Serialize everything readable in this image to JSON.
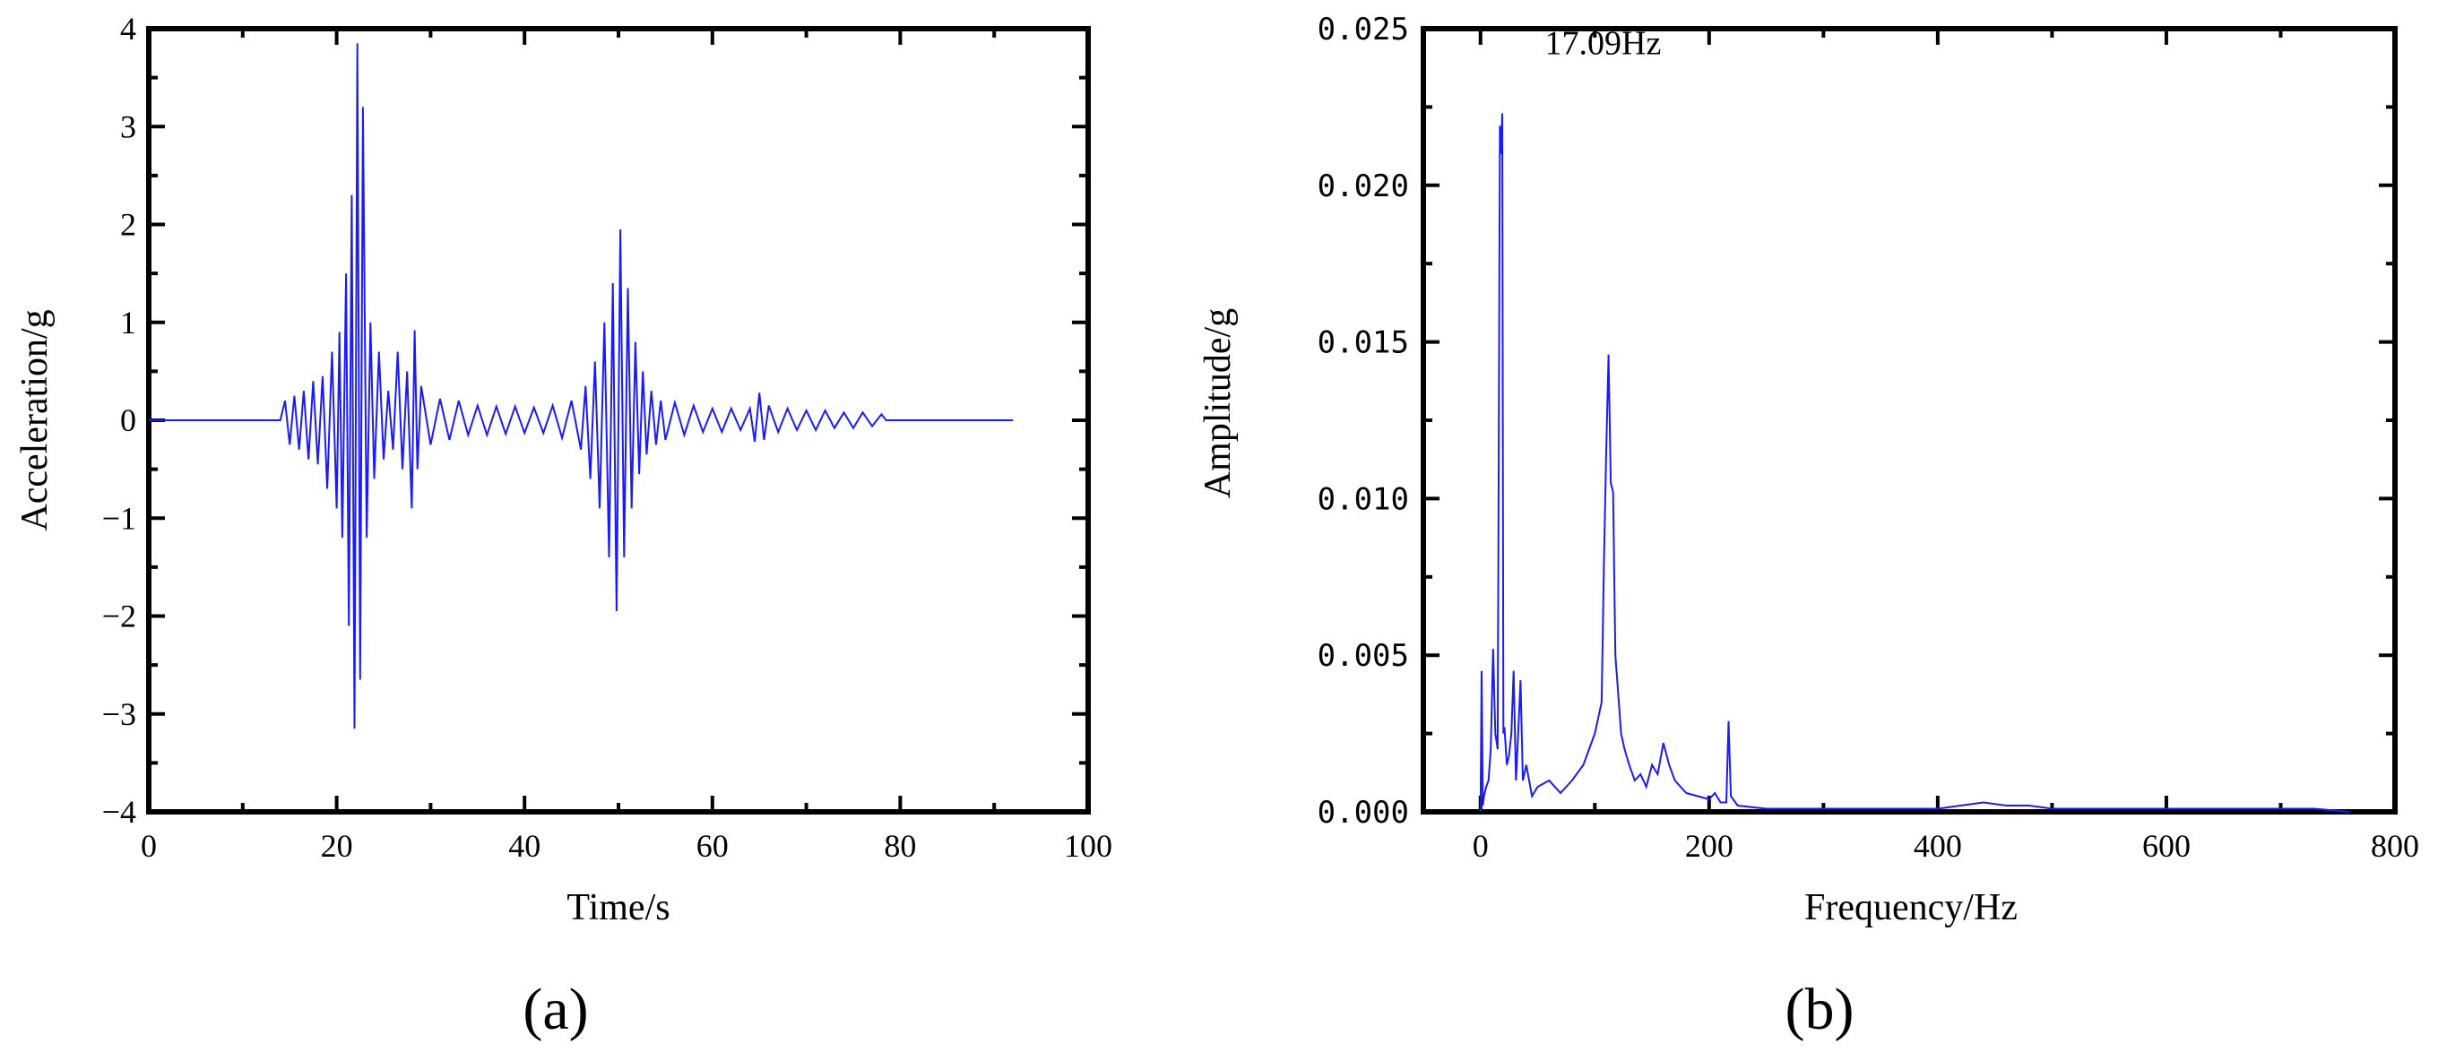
{
  "chart_data": [
    {
      "id": "a",
      "type": "line",
      "title": "",
      "panel_label": "(a)",
      "xlabel": "Time/s",
      "ylabel": "Acceleration/g",
      "xlim": [
        0,
        100
      ],
      "ylim": [
        -4,
        4
      ],
      "xticks": [
        0,
        20,
        40,
        60,
        80,
        100
      ],
      "yticks": [
        -4,
        -3,
        -2,
        -1,
        0,
        1,
        2,
        3,
        4
      ],
      "ytick_labels": [
        "−4",
        "−3",
        "−2",
        "−1",
        "0",
        "1",
        "2",
        "3",
        "4"
      ],
      "grid": false,
      "color": "#1a1aff",
      "series": [
        {
          "name": "acceleration",
          "x": [
            0,
            14,
            14.5,
            15,
            15.5,
            16,
            16.5,
            17,
            17.5,
            18,
            18.5,
            19,
            19.5,
            20,
            20.3,
            20.6,
            21,
            21.3,
            21.6,
            21.9,
            22.2,
            22.5,
            22.8,
            23.2,
            23.6,
            24,
            24.5,
            25,
            25.5,
            26,
            26.5,
            27,
            27.5,
            28,
            28.3,
            28.6,
            29,
            30,
            31,
            32,
            33,
            34,
            35,
            36,
            37,
            38,
            39,
            40,
            41,
            42,
            43,
            44,
            45,
            46,
            46.5,
            47,
            47.5,
            48,
            48.5,
            49,
            49.4,
            49.8,
            50.2,
            50.6,
            51,
            51.4,
            51.8,
            52.2,
            52.6,
            53,
            53.5,
            54,
            54.5,
            55,
            56,
            57,
            58,
            59,
            60,
            61,
            62,
            63,
            64,
            64.5,
            65,
            65.5,
            66,
            67,
            68,
            69,
            70,
            71,
            72,
            73,
            74,
            75,
            76,
            77,
            78,
            78.5,
            80,
            92
          ],
          "y": [
            0,
            0,
            0.2,
            -0.25,
            0.25,
            -0.3,
            0.3,
            -0.4,
            0.4,
            -0.45,
            0.45,
            -0.7,
            0.7,
            -0.9,
            0.9,
            -1.2,
            1.5,
            -2.1,
            2.3,
            -3.15,
            3.85,
            -2.65,
            3.2,
            -1.2,
            1.0,
            -0.6,
            0.7,
            -0.4,
            0.3,
            -0.3,
            0.7,
            -0.5,
            0.5,
            -0.9,
            0.92,
            -0.5,
            0.35,
            -0.25,
            0.22,
            -0.2,
            0.2,
            -0.15,
            0.15,
            -0.15,
            0.14,
            -0.14,
            0.14,
            -0.13,
            0.13,
            -0.13,
            0.15,
            -0.18,
            0.2,
            -0.3,
            0.35,
            -0.6,
            0.6,
            -0.9,
            1.0,
            -1.4,
            1.4,
            -1.95,
            1.95,
            -1.4,
            1.35,
            -0.9,
            0.8,
            -0.55,
            0.5,
            -0.35,
            0.3,
            -0.25,
            0.2,
            -0.2,
            0.18,
            -0.15,
            0.15,
            -0.12,
            0.12,
            -0.12,
            0.12,
            -0.1,
            0.12,
            -0.22,
            0.28,
            -0.2,
            0.15,
            -0.12,
            0.12,
            -0.1,
            0.1,
            -0.1,
            0.1,
            -0.08,
            0.08,
            -0.08,
            0.08,
            -0.06,
            0.06,
            0,
            0,
            0
          ]
        }
      ]
    },
    {
      "id": "b",
      "type": "line",
      "title": "",
      "panel_label": "(b)",
      "xlabel": "Frequency/Hz",
      "ylabel": "Amplitude/g",
      "xlim": [
        -50,
        800
      ],
      "ylim": [
        0,
        0.025
      ],
      "xticks": [
        0,
        200,
        400,
        600,
        800
      ],
      "yticks": [
        0.0,
        0.005,
        0.01,
        0.015,
        0.02,
        0.025
      ],
      "ytick_labels": [
        "0.000",
        "0.005",
        "0.010",
        "0.015",
        "0.020",
        "0.025"
      ],
      "grid": false,
      "color": "#1a1aff",
      "annotations": [
        {
          "text": "17.09Hz",
          "x": 17.09,
          "y": 0.0219
        }
      ],
      "series": [
        {
          "name": "amplitude",
          "x": [
            0,
            1,
            2,
            3,
            5,
            7,
            9,
            11,
            13,
            15,
            17,
            18,
            19,
            20,
            21,
            23,
            25,
            27,
            29,
            31,
            33,
            35,
            37,
            40,
            45,
            50,
            60,
            70,
            80,
            90,
            95,
            100,
            103,
            106,
            108,
            110,
            112,
            114,
            116,
            118,
            120,
            123,
            126,
            130,
            135,
            140,
            145,
            150,
            155,
            160,
            165,
            170,
            175,
            180,
            190,
            200,
            205,
            210,
            215,
            217,
            219,
            225,
            250,
            300,
            350,
            400,
            420,
            440,
            460,
            480,
            500,
            550,
            600,
            650,
            700,
            730,
            760
          ],
          "y": [
            0,
            0.0045,
            0.0002,
            0.0005,
            0.0008,
            0.001,
            0.002,
            0.0052,
            0.0025,
            0.002,
            0.0219,
            0.021,
            0.0223,
            0.0025,
            0.0027,
            0.0015,
            0.0018,
            0.0025,
            0.0045,
            0.001,
            0.0025,
            0.0042,
            0.001,
            0.0015,
            0.0005,
            0.0008,
            0.001,
            0.0006,
            0.001,
            0.0015,
            0.002,
            0.0025,
            0.003,
            0.0035,
            0.008,
            0.0115,
            0.0146,
            0.0105,
            0.0102,
            0.005,
            0.004,
            0.0025,
            0.002,
            0.0015,
            0.001,
            0.0012,
            0.0008,
            0.0015,
            0.0012,
            0.0022,
            0.0015,
            0.001,
            0.0008,
            0.0006,
            0.0005,
            0.0004,
            0.0006,
            0.0003,
            0.0003,
            0.0029,
            0.0005,
            0.0002,
            0.0001,
            0.0001,
            0.0001,
            0.0001,
            0.0002,
            0.0003,
            0.0002,
            0.0002,
            0.0001,
            0.0001,
            0.0001,
            0.0001,
            0.0001,
            0.0001,
            0
          ]
        }
      ]
    }
  ]
}
